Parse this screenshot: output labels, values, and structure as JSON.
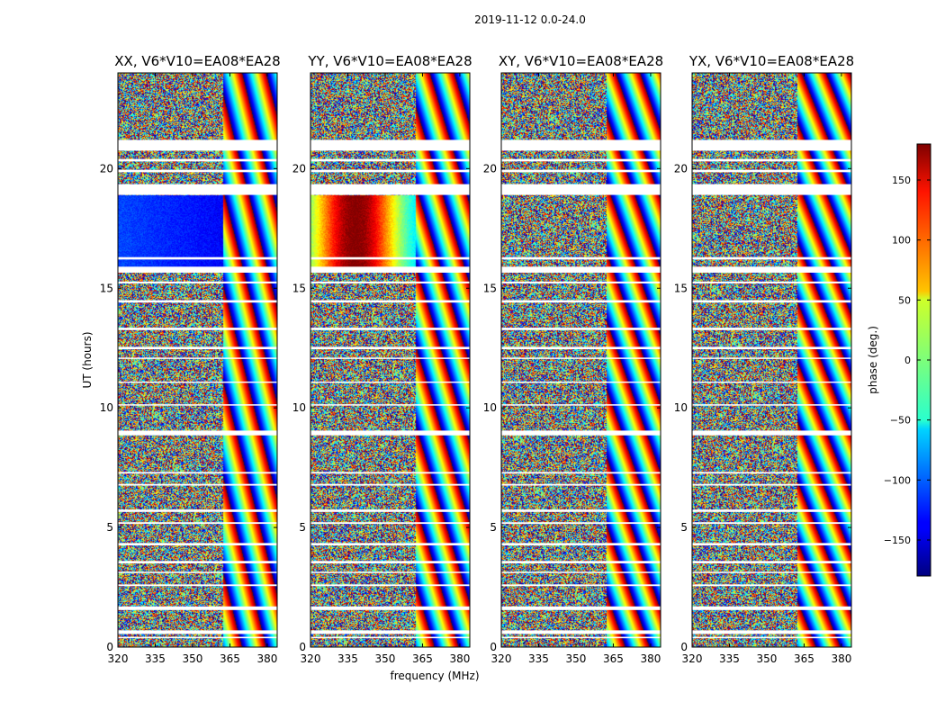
{
  "suptitle": "2019-11-12 0.0-24.0",
  "chart_data": {
    "type": "heatmap",
    "description_text": "",
    "panels": [
      {
        "title": "XX, V6*V10=EA08*EA28",
        "polarization": "XX"
      },
      {
        "title": "YY, V6*V10=EA08*EA28",
        "polarization": "YY"
      },
      {
        "title": "XY, V6*V10=EA08*EA28",
        "polarization": "XY"
      },
      {
        "title": "YX, V6*V10=EA08*EA28",
        "polarization": "YX"
      }
    ],
    "xlabel": "frequency (MHz)",
    "ylabel": "UT (hours)",
    "xlim": [
      320,
      384
    ],
    "ylim": [
      0,
      24
    ],
    "xticks": [
      320,
      335,
      350,
      365,
      380
    ],
    "yticks": [
      0,
      5,
      10,
      15,
      20
    ],
    "colorbar": {
      "label": "phase (deg.)",
      "range": [
        -180,
        180
      ],
      "ticks": [
        -150,
        -100,
        -50,
        0,
        50,
        100,
        150
      ],
      "tick_labels": [
        "−150",
        "−100",
        "−50",
        "0",
        "50",
        "100",
        "150"
      ],
      "colormap": "jet"
    },
    "flagged_gaps_hours": [
      [
        0.37,
        0.43
      ],
      [
        0.55,
        0.7
      ],
      [
        1.55,
        1.7
      ],
      [
        2.55,
        2.62
      ],
      [
        3.1,
        3.15
      ],
      [
        3.5,
        3.6
      ],
      [
        4.25,
        4.35
      ],
      [
        5.15,
        5.22
      ],
      [
        5.65,
        5.75
      ],
      [
        6.75,
        6.82
      ],
      [
        7.25,
        7.32
      ],
      [
        8.85,
        9.05
      ],
      [
        10.1,
        10.15
      ],
      [
        11.05,
        11.1
      ],
      [
        12.05,
        12.1
      ],
      [
        12.45,
        12.55
      ],
      [
        13.25,
        13.35
      ],
      [
        14.4,
        14.5
      ],
      [
        15.2,
        15.28
      ],
      [
        15.65,
        15.9
      ],
      [
        16.2,
        16.3
      ],
      [
        18.9,
        19.35
      ],
      [
        19.85,
        19.95
      ],
      [
        20.3,
        20.4
      ],
      [
        20.75,
        21.2
      ]
    ]
  },
  "colors": {
    "flag_gap": "#ffffff",
    "axes_edge": "#000000"
  }
}
